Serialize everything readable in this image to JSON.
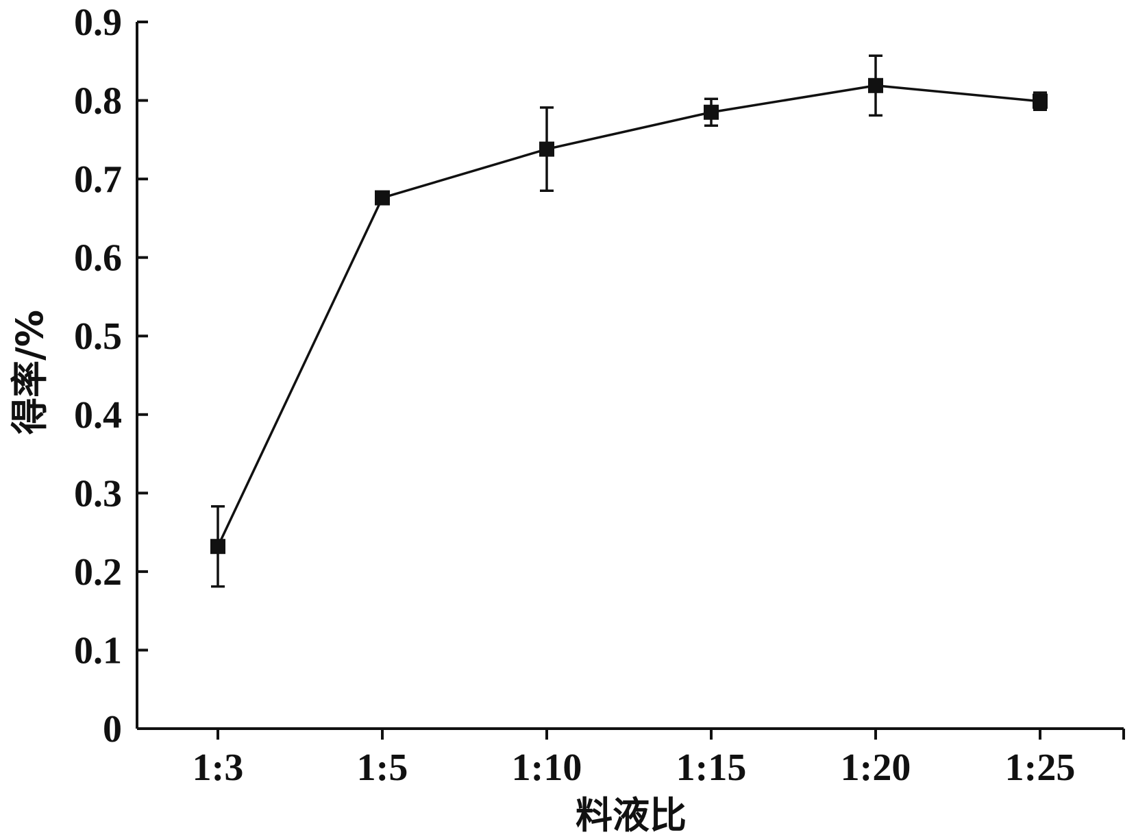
{
  "chart_data": {
    "type": "line",
    "title": "",
    "xlabel": "料液比",
    "ylabel": "得率/%",
    "categories": [
      "1:3",
      "1:5",
      "1:10",
      "1:15",
      "1:20",
      "1:25"
    ],
    "series": [
      {
        "values": [
          0.232,
          0.676,
          0.738,
          0.785,
          0.819,
          0.799
        ],
        "errors": [
          0.051,
          0.004,
          0.053,
          0.017,
          0.038,
          0.011
        ],
        "marker": "square",
        "color": "#111111"
      }
    ],
    "ylim": [
      0,
      0.9
    ],
    "yticks": [
      "0",
      "0.1",
      "0.2",
      "0.3",
      "0.4",
      "0.5",
      "0.6",
      "0.7",
      "0.8",
      "0.9"
    ],
    "grid": false,
    "legend": "none"
  }
}
